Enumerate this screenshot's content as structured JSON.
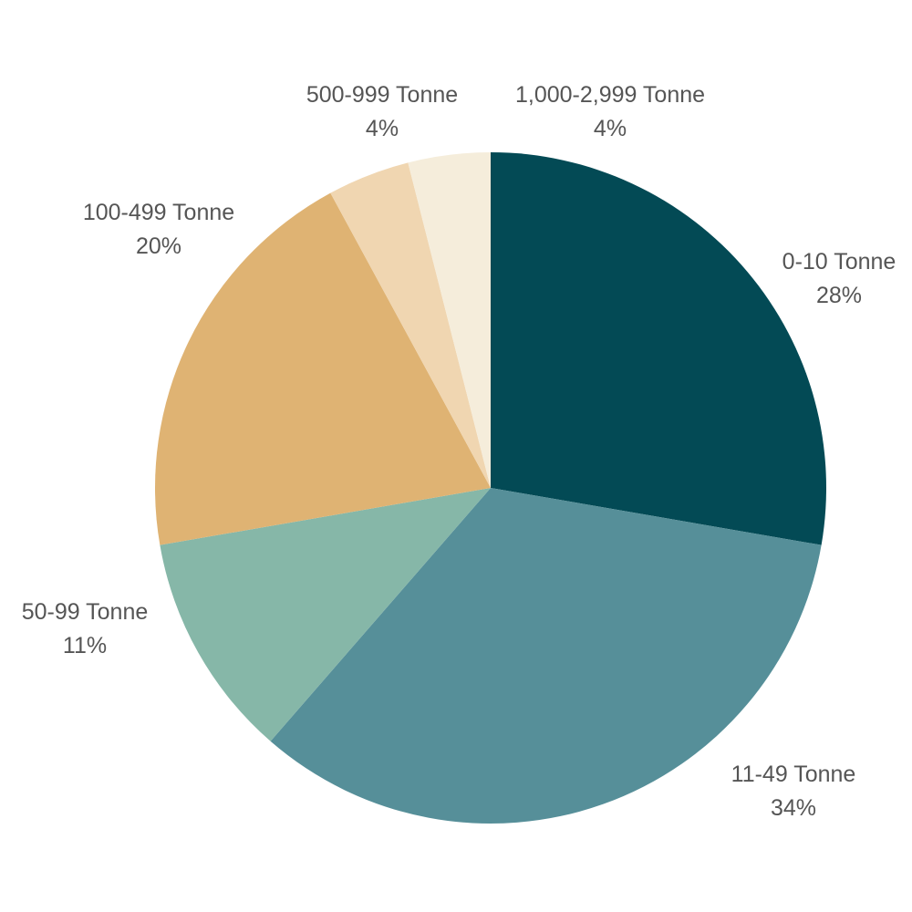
{
  "chart_data": {
    "type": "pie",
    "title": "",
    "start_angle_deg": 0,
    "direction": "clockwise",
    "slices": [
      {
        "label": "0-10 Tonne",
        "value": 28,
        "value_label": "28%",
        "color": "#034a55"
      },
      {
        "label": "11-49 Tonne",
        "value": 34,
        "value_label": "34%",
        "color": "#568f99"
      },
      {
        "label": "50-99 Tonne",
        "value": 11,
        "value_label": "11%",
        "color": "#86b7a8"
      },
      {
        "label": "100-499 Tonne",
        "value": 20,
        "value_label": "20%",
        "color": "#dfb373"
      },
      {
        "label": "500-999 Tonne",
        "value": 4,
        "value_label": "4%",
        "color": "#f0d6b1"
      },
      {
        "label": "1,000-2,999 Tonne",
        "value": 4,
        "value_label": "4%",
        "color": "#f5eddb"
      }
    ],
    "label_color": "#555555",
    "background": "#ffffff"
  }
}
